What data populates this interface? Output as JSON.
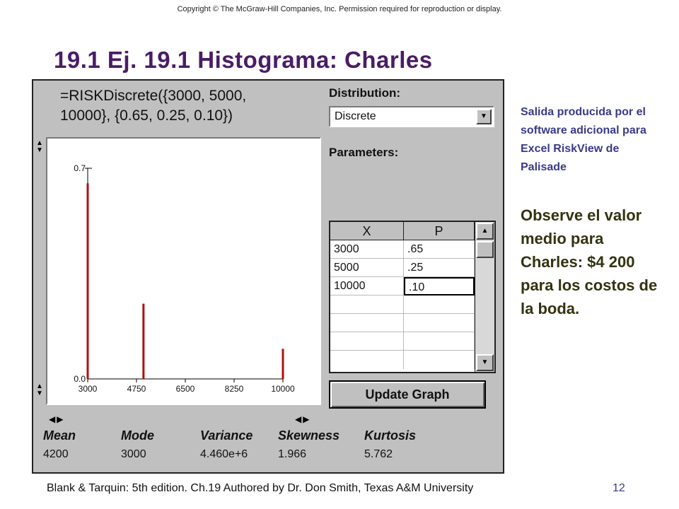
{
  "copyright": "Copyright © The McGraw-Hill Companies, Inc. Permission required for reproduction or display.",
  "title": "19.1 Ej. 19.1 Histograma: Charles",
  "window": {
    "formula_line1": "=RISKDiscrete({3000, 5000,",
    "formula_line2": "10000}, {0.65, 0.25, 0.10})",
    "distribution_label": "Distribution:",
    "distribution_value": "Discrete",
    "parameters_label": "Parameters:",
    "table": {
      "headers": [
        "X",
        "P"
      ],
      "rows": [
        {
          "x": "3000",
          "p": ".65"
        },
        {
          "x": "5000",
          "p": ".25"
        },
        {
          "x": "10000",
          "p": ".10"
        }
      ]
    },
    "update_button": "Update Graph",
    "stats": [
      {
        "label": "Mean",
        "value": "4200"
      },
      {
        "label": "Mode",
        "value": "3000"
      },
      {
        "label": "Variance",
        "value": "4.460e+6"
      },
      {
        "label": "Skewness",
        "value": "1.966"
      },
      {
        "label": "Kurtosis",
        "value": "5.762"
      }
    ]
  },
  "chart_data": {
    "type": "bar",
    "x": [
      3000,
      5000,
      10000
    ],
    "values": [
      0.65,
      0.25,
      0.1
    ],
    "xlim": [
      3000,
      10000
    ],
    "ylim": [
      0,
      0.7
    ],
    "x_ticks": [
      "3000",
      "4750",
      "6500",
      "8250",
      "10000"
    ],
    "y_ticks": [
      "0.0",
      "0.7"
    ],
    "bar_color": "#b01010",
    "grid": false
  },
  "notes": {
    "small": "Salida producida por el software adicional para Excel RiskView de Palisade",
    "large": "Observe el valor medio para Charles: $4 200 para los costos de la boda."
  },
  "footer": "Blank & Tarquin: 5th edition. Ch.19 Authored by Dr. Don Smith, Texas A&M University",
  "page_number": "12"
}
